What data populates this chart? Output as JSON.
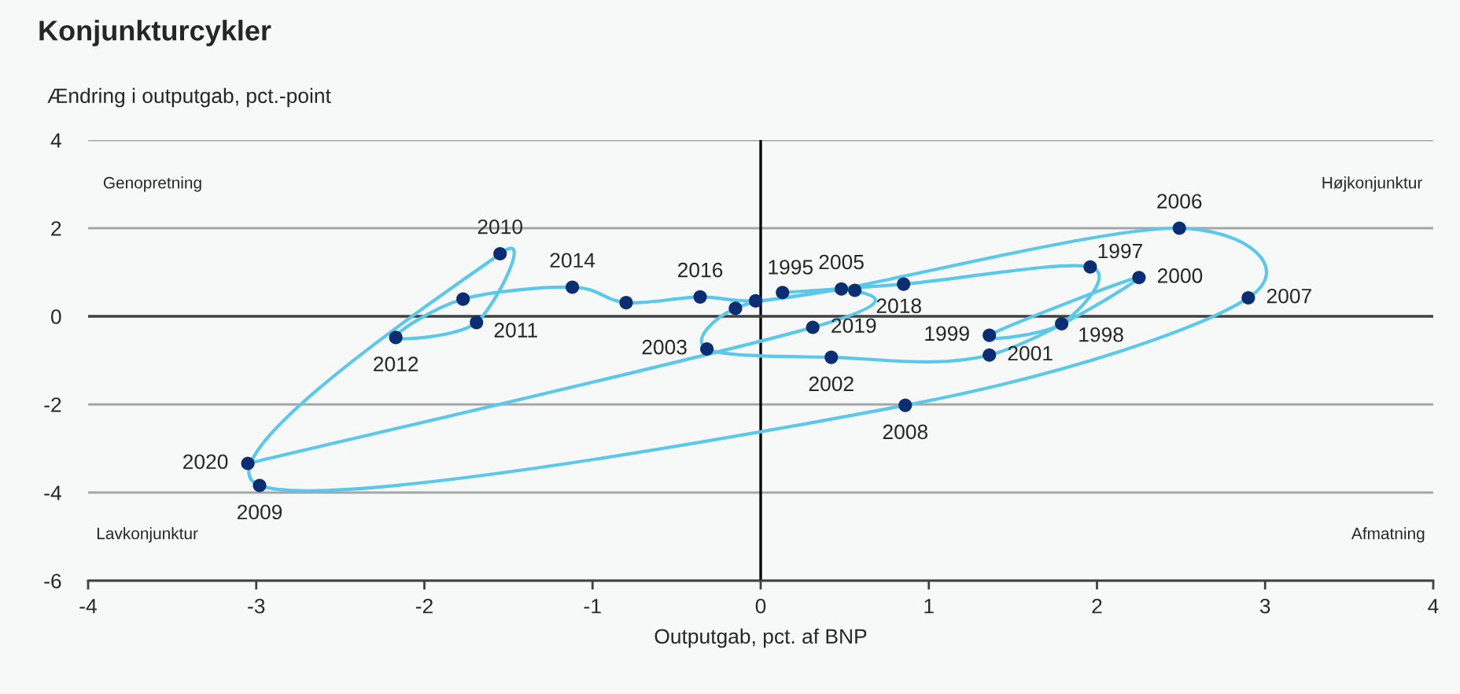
{
  "chart_data": {
    "type": "scatter",
    "title": "Konjunkturcykler",
    "ylabel": "Ændring i outputgab, pct.-point",
    "xlabel": "Outputgab, pct. af BNP",
    "annotations": [
      "Genopretning",
      "Højkonjunktur",
      "Lavkonjunktur",
      "Afmatning",
      {
        "text": "1995",
        "x": 0.13,
        "y": 0.54
      },
      {
        "text": "1997",
        "x": 1.96,
        "y": 1.12
      },
      {
        "text": "1998",
        "x": 1.79,
        "y": -0.17
      },
      {
        "text": "1999",
        "x": 1.36,
        "y": -0.43
      },
      {
        "text": "2000",
        "x": 2.25,
        "y": 0.88
      },
      {
        "text": "2001",
        "x": 1.36,
        "y": -0.88
      },
      {
        "text": "2002",
        "x": 0.42,
        "y": -0.93
      },
      {
        "text": "2003",
        "x": -0.32,
        "y": -0.74
      },
      {
        "text": "2005",
        "x": 0.48,
        "y": 0.62
      },
      {
        "text": "2006",
        "x": 2.49,
        "y": 2.0
      },
      {
        "text": "2007",
        "x": 2.9,
        "y": 0.42
      },
      {
        "text": "2008",
        "x": 0.86,
        "y": -2.02
      },
      {
        "text": "2009",
        "x": -2.98,
        "y": -3.84
      },
      {
        "text": "2010",
        "x": -1.55,
        "y": 1.42
      },
      {
        "text": "2011",
        "x": -1.69,
        "y": -0.14
      },
      {
        "text": "2012",
        "x": -2.17,
        "y": -0.48
      },
      {
        "text": "2014",
        "x": -1.12,
        "y": 0.66
      },
      {
        "text": "2016",
        "x": -0.36,
        "y": 0.44
      },
      {
        "text": "2018",
        "x": 0.56,
        "y": 0.59
      },
      {
        "text": "2019",
        "x": 0.31,
        "y": -0.25
      },
      {
        "text": "2020",
        "x": -3.05,
        "y": -3.34
      }
    ],
    "xlim": [
      -4,
      4
    ],
    "xticks": [
      -4,
      -3,
      -2,
      -1,
      0,
      1,
      2,
      3,
      4
    ],
    "ylim": [
      -6,
      4
    ],
    "yticks": [
      -6,
      -4,
      -2,
      0,
      2,
      4
    ],
    "grid": "y",
    "ref_lines": [
      {
        "axis": "x",
        "value": 0,
        "color": "#000000"
      },
      {
        "axis": "y",
        "value": 0,
        "color": "#404040"
      }
    ],
    "series": [
      {
        "type": "line",
        "color": "#5bc8ea",
        "x": [
          0.13,
          0.85,
          1.96,
          1.79,
          1.36,
          2.25,
          1.36,
          0.42,
          -0.32,
          -0.15,
          0.48,
          2.49,
          2.9,
          0.86,
          -2.98,
          -1.55,
          -1.69,
          -2.17,
          -1.77,
          -1.12,
          -0.8,
          -0.36,
          -0.03,
          0.56,
          0.31,
          -3.05
        ],
        "values": [
          0.54,
          0.73,
          1.12,
          -0.17,
          -0.43,
          0.88,
          -0.88,
          -0.93,
          -0.74,
          0.18,
          0.62,
          2.0,
          0.42,
          -2.02,
          -3.84,
          1.42,
          -0.14,
          -0.48,
          0.39,
          0.66,
          0.31,
          0.44,
          0.35,
          0.59,
          -0.25,
          -3.34
        ]
      },
      {
        "color": "#0b2d72",
        "marker": "circle",
        "x": [
          0.13,
          0.85,
          1.96,
          1.79,
          1.36,
          2.25,
          1.36,
          0.42,
          -0.32,
          -0.15,
          0.48,
          2.49,
          2.9,
          0.86,
          -2.98,
          -1.55,
          -1.69,
          -2.17,
          -1.77,
          -1.12,
          -0.8,
          -0.36,
          -0.03,
          0.56,
          0.31,
          -3.05
        ],
        "values": [
          0.54,
          0.73,
          1.12,
          -0.17,
          -0.43,
          0.88,
          -0.88,
          -0.93,
          -0.74,
          0.18,
          0.62,
          2.0,
          0.42,
          -2.02,
          -3.84,
          1.42,
          -0.14,
          -0.48,
          0.39,
          0.66,
          0.31,
          0.44,
          0.35,
          0.59,
          -0.25,
          -3.34
        ]
      }
    ]
  }
}
